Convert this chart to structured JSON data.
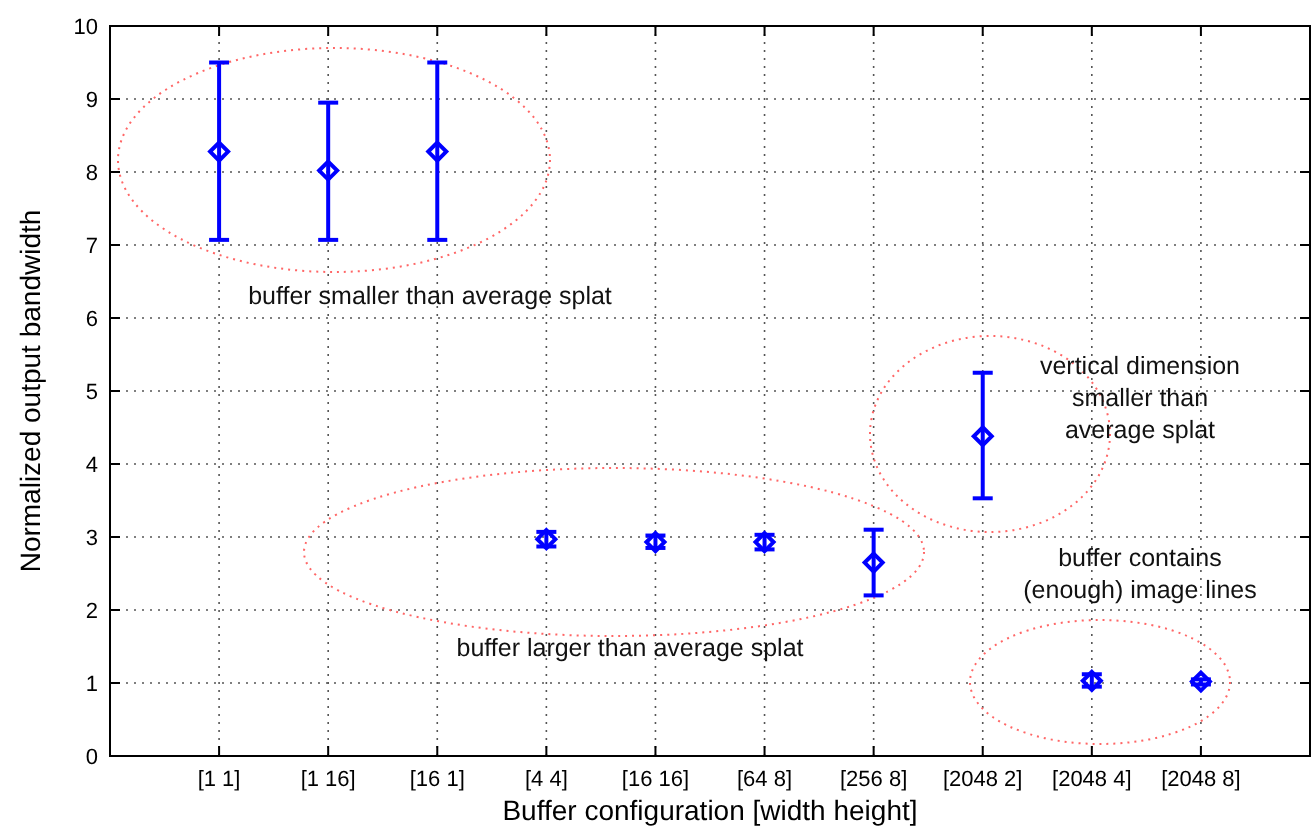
{
  "chart_data": {
    "type": "scatter",
    "xlabel": "Buffer configuration [width height]",
    "ylabel": "Normalized output bandwidth",
    "categories": [
      "[1 1]",
      "[1 16]",
      "[16 1]",
      "[4 4]",
      "[16 16]",
      "[64 8]",
      "[256 8]",
      "[2048 2]",
      "[2048 4]",
      "[2048 8]"
    ],
    "series": [
      {
        "color": "#0000ff",
        "values": [
          8.28,
          8.02,
          8.28,
          2.97,
          2.93,
          2.93,
          2.65,
          4.38,
          1.03,
          1.02
        ],
        "errors": [
          [
            7.07,
            9.5
          ],
          [
            7.07,
            8.95
          ],
          [
            7.07,
            9.5
          ],
          [
            2.87,
            3.07
          ],
          [
            2.85,
            3.02
          ],
          [
            2.83,
            3.03
          ],
          [
            2.2,
            3.1
          ],
          [
            3.53,
            5.25
          ],
          [
            0.95,
            1.12
          ],
          [
            0.98,
            1.05
          ]
        ]
      }
    ],
    "ylim": [
      0,
      10
    ],
    "yticks": [
      0,
      1,
      2,
      3,
      4,
      5,
      6,
      7,
      8,
      9,
      10
    ],
    "grid": true,
    "marker": "diamond",
    "annotations": [
      "buffer smaller than average splat",
      "buffer larger than average splat",
      "vertical dimension\nsmaller than\naverage splat",
      "buffer contains\n(enough) image lines"
    ]
  }
}
